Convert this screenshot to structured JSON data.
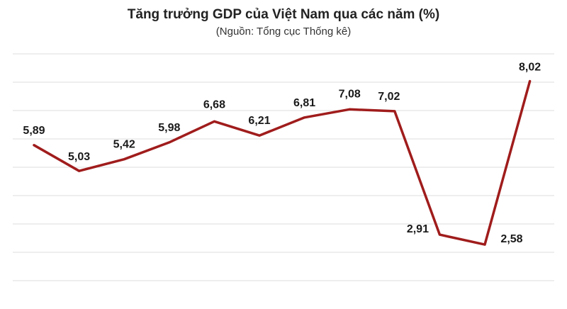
{
  "chart_data": {
    "type": "line",
    "title": "Tăng trưởng GDP của Việt Nam qua các năm (%)",
    "subtitle": "(Nguồn: Tổng cục Thống kê)",
    "xlabel": "",
    "ylabel": "",
    "grid": true,
    "legend": "none",
    "line_color": "#a01c1c",
    "grid_color": "#dcdcdc",
    "series": [
      {
        "values": [
          5.89,
          5.03,
          5.42,
          5.98,
          6.68,
          6.21,
          6.81,
          7.08,
          7.02,
          2.91,
          2.58,
          8.02
        ],
        "labels": [
          "5,89",
          "5,03",
          "5,42",
          "5,98",
          "6,68",
          "6,21",
          "6,81",
          "7,08",
          "7,02",
          "2,91",
          "2,58",
          "8,02"
        ]
      }
    ]
  }
}
